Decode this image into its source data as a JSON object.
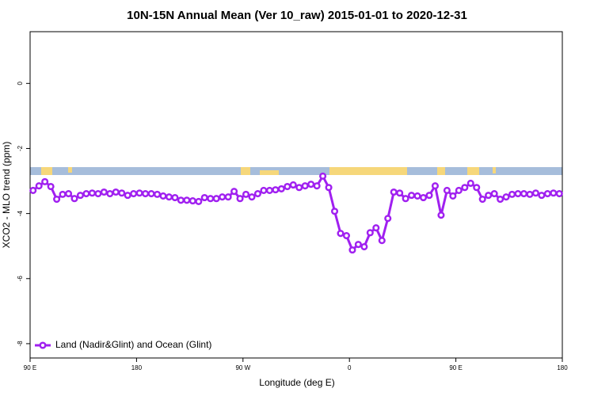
{
  "chart_data": {
    "type": "line",
    "title": "10N-15N Annual Mean (Ver 10_raw)   2015-01-01 to 2020-12-31",
    "xlabel": "Longitude (deg E)",
    "ylabel": "XCO2 - MLO trend (ppm)",
    "x": [
      92.5,
      97.5,
      102.5,
      107.5,
      112.5,
      117.5,
      122.5,
      127.5,
      132.5,
      137.5,
      142.5,
      147.5,
      152.5,
      157.5,
      162.5,
      167.5,
      172.5,
      177.5,
      182.5,
      187.5,
      192.5,
      197.5,
      202.5,
      207.5,
      212.5,
      217.5,
      222.5,
      227.5,
      232.5,
      237.5,
      242.5,
      247.5,
      252.5,
      257.5,
      262.5,
      267.5,
      272.5,
      277.5,
      282.5,
      287.5,
      292.5,
      297.5,
      302.5,
      307.5,
      312.5,
      317.5,
      322.5,
      327.5,
      332.5,
      337.5,
      342.5,
      347.5,
      352.5,
      357.5,
      362.5,
      367.5,
      372.5,
      377.5,
      382.5,
      387.5,
      392.5,
      397.5,
      402.5,
      407.5,
      412.5,
      417.5,
      422.5,
      427.5,
      432.5,
      437.5,
      442.5,
      447.5,
      452.5,
      457.5,
      462.5,
      467.5,
      472.5,
      477.5,
      482.5,
      487.5,
      492.5,
      497.5,
      502.5,
      507.5,
      512.5,
      517.5,
      522.5,
      527.5,
      532.5,
      537.5
    ],
    "series": [
      {
        "name": "Land (Nadir&Glint) and Ocean (Glint)",
        "color": "#a020f0",
        "values": [
          -3.29,
          -3.15,
          -3.02,
          -3.17,
          -3.56,
          -3.41,
          -3.39,
          -3.54,
          -3.44,
          -3.39,
          -3.37,
          -3.39,
          -3.34,
          -3.39,
          -3.34,
          -3.37,
          -3.44,
          -3.39,
          -3.37,
          -3.39,
          -3.39,
          -3.41,
          -3.46,
          -3.49,
          -3.51,
          -3.59,
          -3.59,
          -3.61,
          -3.63,
          -3.51,
          -3.54,
          -3.54,
          -3.49,
          -3.49,
          -3.32,
          -3.54,
          -3.41,
          -3.49,
          -3.39,
          -3.29,
          -3.29,
          -3.27,
          -3.24,
          -3.17,
          -3.12,
          -3.2,
          -3.15,
          -3.1,
          -3.15,
          -2.85,
          -3.2,
          -3.93,
          -4.61,
          -4.68,
          -5.12,
          -4.95,
          -5.02,
          -4.59,
          -4.44,
          -4.83,
          -4.15,
          -3.34,
          -3.37,
          -3.54,
          -3.44,
          -3.46,
          -3.51,
          -3.44,
          -3.15,
          -4.05,
          -3.29,
          -3.46,
          -3.29,
          -3.2,
          -3.07,
          -3.2,
          -3.56,
          -3.44,
          -3.39,
          -3.56,
          -3.49,
          -3.41,
          -3.39,
          -3.39,
          -3.41,
          -3.37,
          -3.44,
          -3.39,
          -3.37,
          -3.39
        ]
      }
    ],
    "xlim": [
      90,
      540
    ],
    "xticks": [
      {
        "value": 90,
        "label": "90 E"
      },
      180,
      {
        "value": 270,
        "label": "90 W"
      },
      {
        "value": 360,
        "label": "0"
      },
      {
        "value": 450,
        "label": "90 E"
      },
      {
        "value": 540,
        "label": "180"
      }
    ],
    "ylim": [
      -8.44,
      1.59
    ],
    "yticks": [
      0,
      -2,
      -4,
      -6,
      -8
    ],
    "legend": "bottom-left"
  }
}
